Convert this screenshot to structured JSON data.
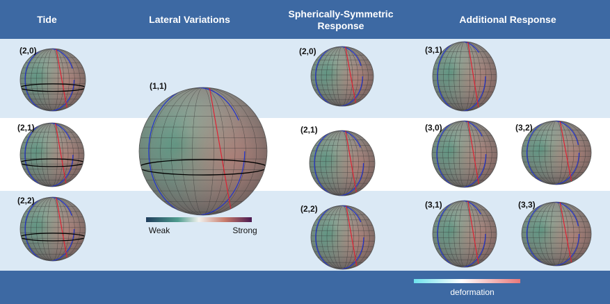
{
  "headers": [
    "Tide",
    "Lateral Variations",
    "Spherically-Symmetric Response",
    "Additional Response"
  ],
  "globes": [
    {
      "label": "(2,0)"
    },
    {
      "label": "(2,1)"
    },
    {
      "label": "(2,2)"
    },
    {
      "label": "(1,1)"
    },
    {
      "label": "(2,0)"
    },
    {
      "label": "(2,1)"
    },
    {
      "label": "(2,2)"
    },
    {
      "label": "(3,1)"
    },
    {
      "label": "(3,0)"
    },
    {
      "label": "(3,2)"
    },
    {
      "label": "(3,1)"
    },
    {
      "label": "(3,3)"
    }
  ],
  "colorbar": {
    "low": "Weak",
    "high": "Strong"
  },
  "deformation_label": "deformation"
}
